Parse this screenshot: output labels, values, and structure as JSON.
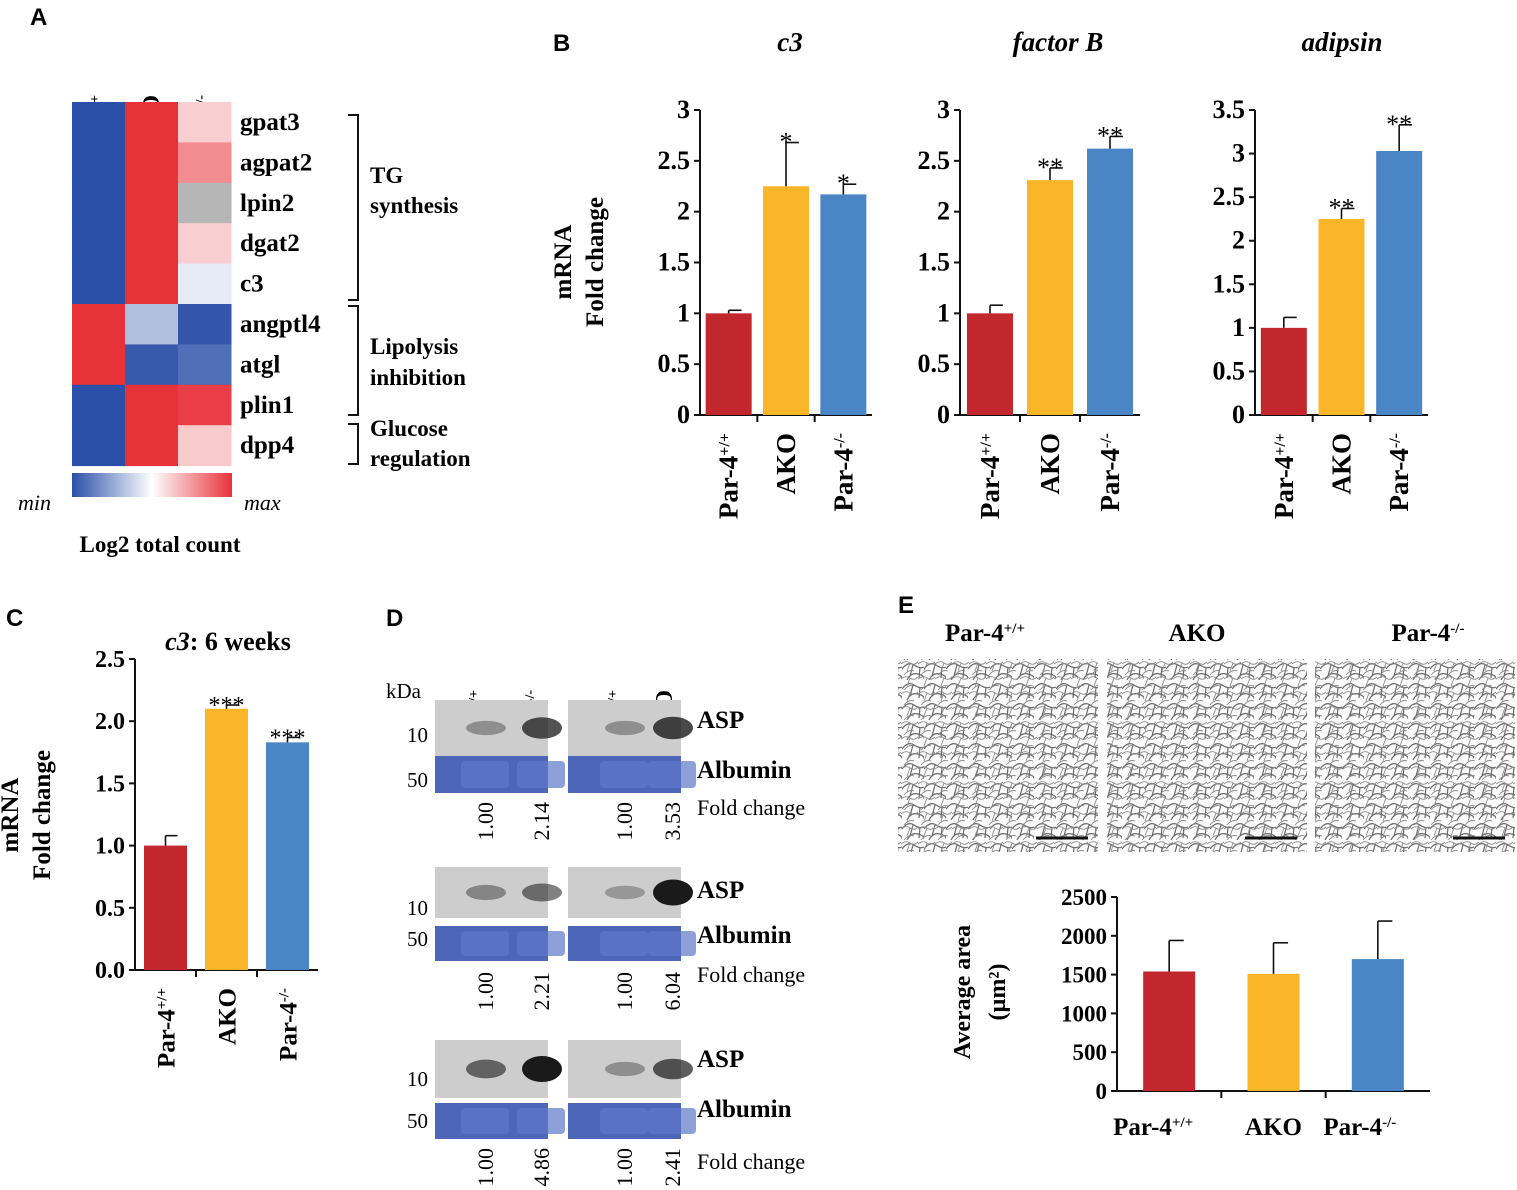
{
  "colors": {
    "wt": "#c1272d",
    "ako": "#fbb528",
    "ko": "#4a86c5",
    "heat_min": "#2a4fa8",
    "heat_mid": "#ffffff",
    "heat_max": "#e8323a",
    "gray": "#b6b6b6",
    "albumin": "#4d67b8"
  },
  "panel_labels": {
    "a": "A",
    "b": "B",
    "c": "C",
    "d": "D",
    "e": "E"
  },
  "genotypes": {
    "wt_base": "Par-4",
    "wt_sup": "+/+",
    "ako": "AKO",
    "ko_base": "Par-4",
    "ko_sup": "-/-"
  },
  "heatmap": {
    "genes": [
      "gpat3",
      "agpat2",
      "lpin2",
      "dgat2",
      "c3",
      "angptl4",
      "atgl",
      "plin1",
      "dpp4"
    ],
    "values": [
      [
        0.0,
        1.0,
        0.62
      ],
      [
        0.0,
        1.0,
        0.78
      ],
      [
        0.0,
        1.0,
        -1
      ],
      [
        0.0,
        1.0,
        0.62
      ],
      [
        0.0,
        1.0,
        0.44
      ],
      [
        1.0,
        0.32,
        0.02
      ],
      [
        1.0,
        0.03,
        0.09
      ],
      [
        0.0,
        1.0,
        0.97
      ],
      [
        0.0,
        1.0,
        0.63
      ]
    ],
    "groups": [
      {
        "lines": [
          "TG",
          "synthesis"
        ]
      },
      {
        "lines": [
          "Lipolysis",
          "inhibition"
        ]
      },
      {
        "lines": [
          "Glucose",
          "regulation"
        ]
      }
    ],
    "legend_min": "min",
    "legend_max": "max",
    "legend_title": "Log2 total count"
  },
  "chart_data": [
    {
      "panel": "B",
      "type": "bar",
      "title": "c3",
      "ylabel_lines": [
        "mRNA",
        "Fold change"
      ],
      "categories": [
        "wt",
        "ako",
        "ko"
      ],
      "values": [
        1.0,
        2.25,
        2.17
      ],
      "errors": [
        0.03,
        0.43,
        0.1
      ],
      "significance": [
        "",
        "*",
        "*"
      ],
      "ylim": [
        0,
        3
      ],
      "yticks": [
        "0",
        "0.5",
        "1",
        "1.5",
        "2",
        "2.5",
        "3"
      ]
    },
    {
      "panel": "B",
      "type": "bar",
      "title": "factor B",
      "categories": [
        "wt",
        "ako",
        "ko"
      ],
      "values": [
        1.0,
        2.31,
        2.62
      ],
      "errors": [
        0.08,
        0.12,
        0.12
      ],
      "significance": [
        "",
        "**",
        "**"
      ],
      "ylim": [
        0,
        3
      ],
      "yticks": [
        "0",
        "0.5",
        "1",
        "1.5",
        "2",
        "2.5",
        "3"
      ]
    },
    {
      "panel": "B",
      "type": "bar",
      "title": "adipsin",
      "categories": [
        "wt",
        "ako",
        "ko"
      ],
      "values": [
        1.0,
        2.25,
        3.03
      ],
      "errors": [
        0.12,
        0.12,
        0.3
      ],
      "significance": [
        "",
        "**",
        "**"
      ],
      "ylim": [
        0,
        3.5
      ],
      "yticks": [
        "0",
        "0.5",
        "1",
        "1.5",
        "2",
        "2.5",
        "3",
        "3.5"
      ]
    },
    {
      "panel": "C",
      "type": "bar",
      "title_italic": "c3",
      "title_rest": ": 6 weeks",
      "ylabel_lines": [
        "mRNA",
        "Fold change"
      ],
      "categories": [
        "wt",
        "ako",
        "ko"
      ],
      "values": [
        1.0,
        2.1,
        1.83
      ],
      "errors": [
        0.08,
        0.03,
        0.04
      ],
      "significance": [
        "",
        "***",
        "***"
      ],
      "ylim": [
        0,
        2.5
      ],
      "yticks": [
        "0.0",
        "0.5",
        "1.0",
        "1.5",
        "2.0",
        "2.5"
      ]
    },
    {
      "panel": "E",
      "type": "bar",
      "ylabel_lines": [
        "Average area",
        "(µm²)"
      ],
      "categories": [
        "wt",
        "ako",
        "ko"
      ],
      "values": [
        1540,
        1510,
        1700
      ],
      "errors": [
        400,
        400,
        490
      ],
      "significance": [
        "",
        "",
        ""
      ],
      "ylim": [
        0,
        2500
      ],
      "yticks": [
        "0",
        "500",
        "1000",
        "1500",
        "2000",
        "2500"
      ]
    }
  ],
  "western": {
    "kda": "kDa",
    "m10": "10",
    "m50": "50",
    "asp": "ASP",
    "albumin": "Albumin",
    "fold_change": "Fold change",
    "left_lanes": [
      "wt",
      "ko"
    ],
    "right_lanes": [
      "wt",
      "ako"
    ],
    "folds": [
      {
        "left": [
          "1.00",
          "2.14"
        ],
        "right": [
          "1.00",
          "3.53"
        ]
      },
      {
        "left": [
          "1.00",
          "2.21"
        ],
        "right": [
          "1.00",
          "6.04"
        ]
      },
      {
        "left": [
          "1.00",
          "4.86"
        ],
        "right": [
          "1.00",
          "2.41"
        ]
      }
    ]
  },
  "histology": {
    "labels": [
      "wt",
      "ako",
      "ko"
    ]
  }
}
